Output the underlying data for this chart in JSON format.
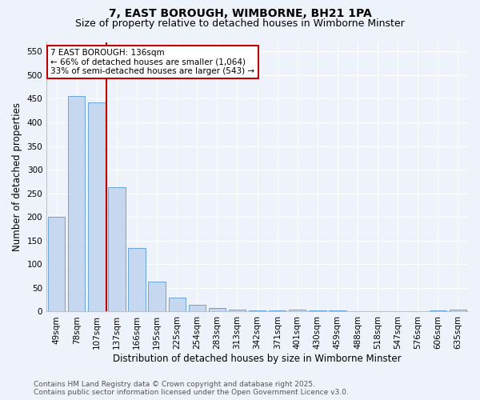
{
  "title1": "7, EAST BOROUGH, WIMBORNE, BH21 1PA",
  "title2": "Size of property relative to detached houses in Wimborne Minster",
  "xlabel": "Distribution of detached houses by size in Wimborne Minster",
  "ylabel": "Number of detached properties",
  "categories": [
    "49sqm",
    "78sqm",
    "107sqm",
    "137sqm",
    "166sqm",
    "195sqm",
    "225sqm",
    "254sqm",
    "283sqm",
    "313sqm",
    "342sqm",
    "371sqm",
    "401sqm",
    "430sqm",
    "459sqm",
    "488sqm",
    "518sqm",
    "547sqm",
    "576sqm",
    "606sqm",
    "635sqm"
  ],
  "values": [
    200,
    455,
    443,
    263,
    135,
    63,
    30,
    15,
    8,
    4,
    3,
    2,
    5,
    2,
    3,
    1,
    1,
    1,
    0,
    3,
    4
  ],
  "bar_color": "#c5d8f0",
  "bar_edge_color": "#5b9bd5",
  "vline_x_index": 3,
  "vline_color": "#c00000",
  "annotation_text_line1": "7 EAST BOROUGH: 136sqm",
  "annotation_text_line2": "← 66% of detached houses are smaller (1,064)",
  "annotation_text_line3": "33% of semi-detached houses are larger (543) →",
  "annotation_box_color": "#ffffff",
  "annotation_box_edge": "#c00000",
  "ylim": [
    0,
    570
  ],
  "yticks": [
    0,
    50,
    100,
    150,
    200,
    250,
    300,
    350,
    400,
    450,
    500,
    550
  ],
  "footnote": "Contains HM Land Registry data © Crown copyright and database right 2025.\nContains public sector information licensed under the Open Government Licence v3.0.",
  "bg_color": "#eef2fa",
  "grid_color": "#ffffff",
  "title_fontsize": 10,
  "subtitle_fontsize": 9,
  "axis_fontsize": 8.5,
  "tick_fontsize": 7.5,
  "footnote_fontsize": 6.5,
  "annotation_fontsize": 7.5
}
